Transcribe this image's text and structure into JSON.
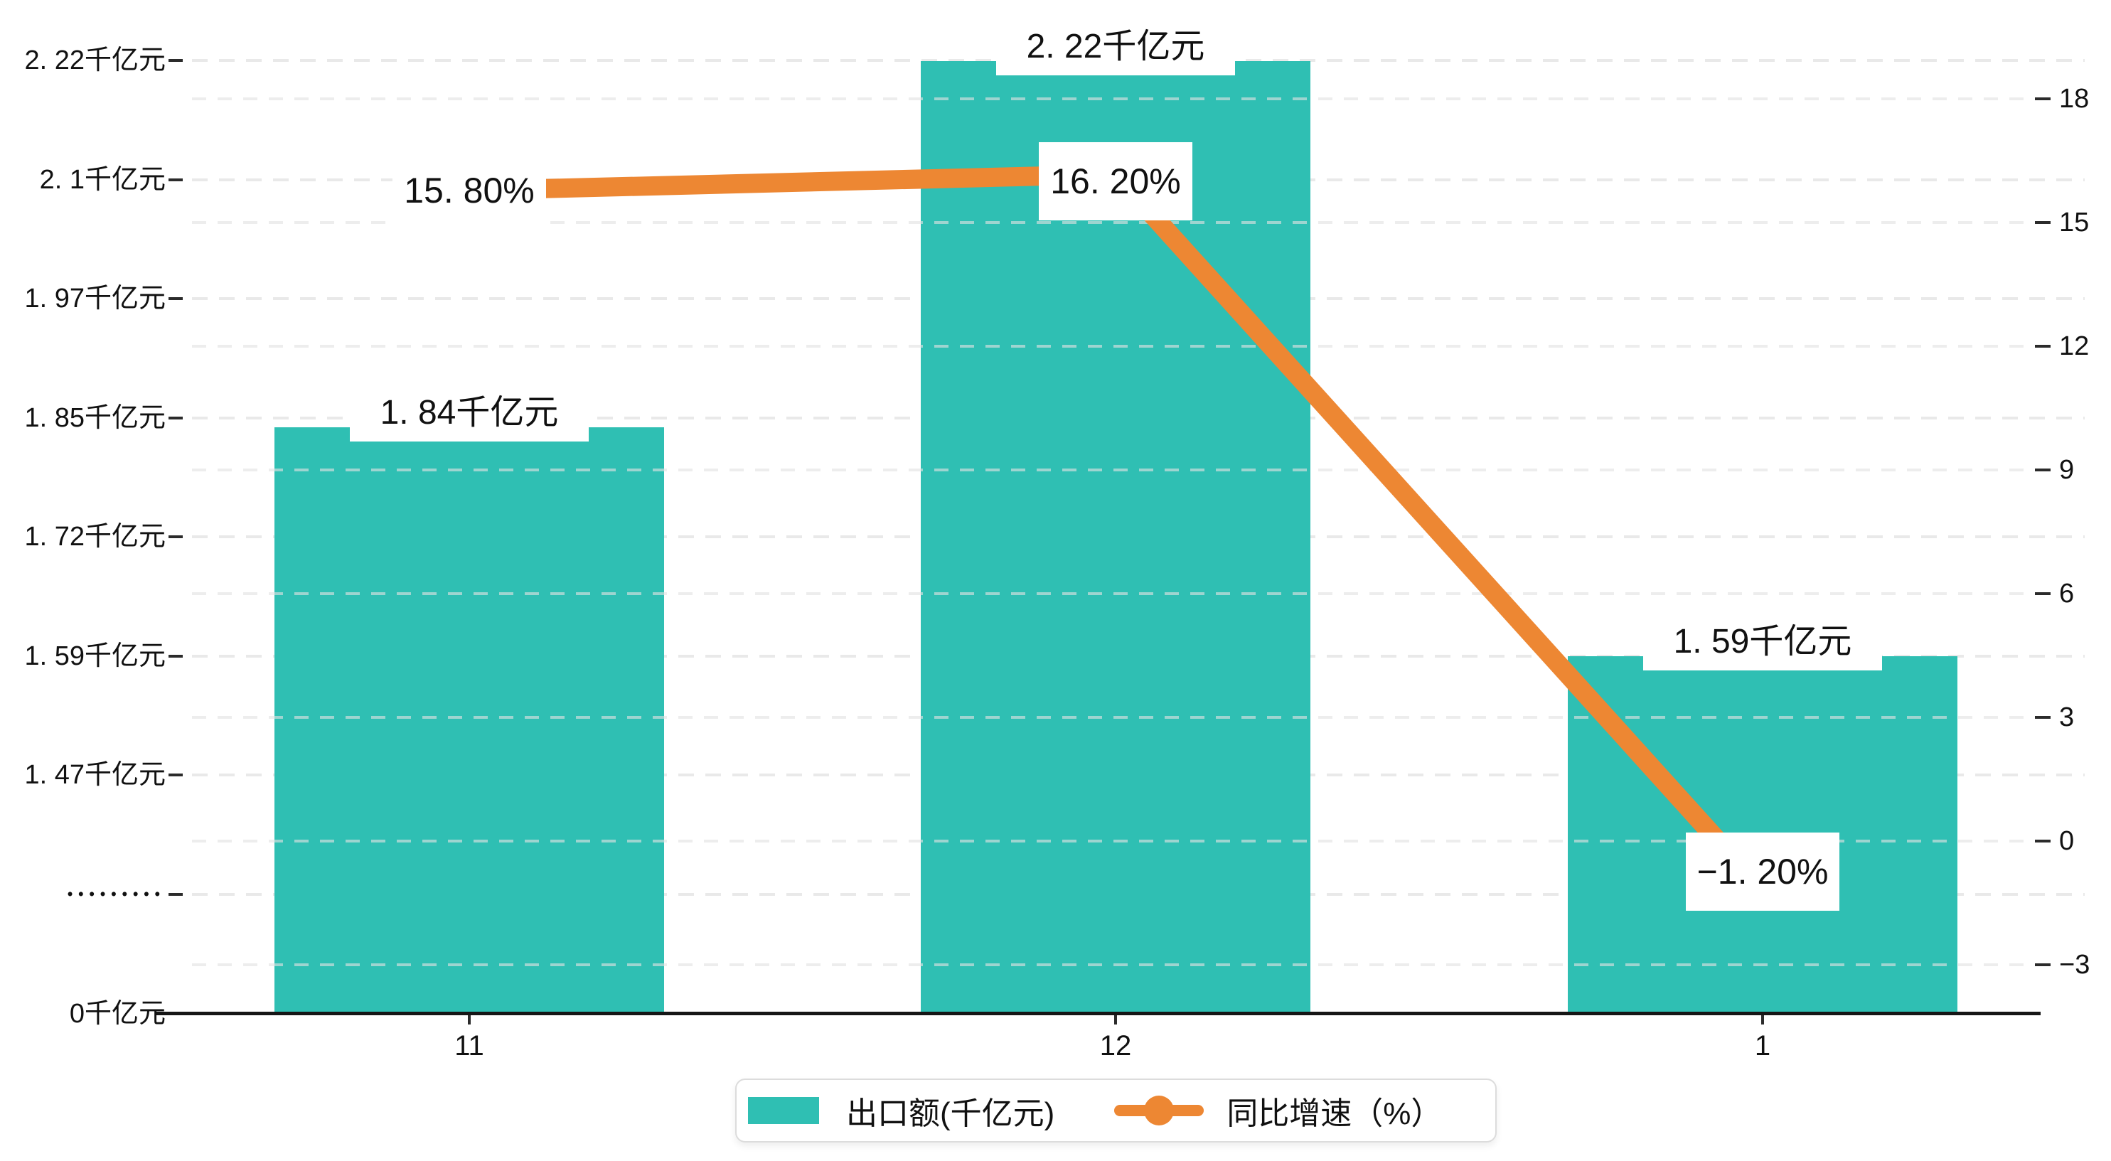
{
  "chart_data": {
    "type": "bar+line",
    "categories": [
      "11",
      "12",
      "1"
    ],
    "series": [
      {
        "name": "出口额(千亿元)",
        "type": "bar",
        "axis": "left",
        "unit": "千亿元",
        "color": "#2FBFB3",
        "values": [
          1.84,
          2.22,
          1.59
        ],
        "labels": [
          "1. 84千亿元",
          "2. 22千亿元",
          "1. 59千亿元"
        ]
      },
      {
        "name": "同比增速（%）",
        "type": "line",
        "axis": "right",
        "unit": "%",
        "color": "#ED8733",
        "values": [
          15.8,
          16.2,
          -1.2
        ],
        "labels": [
          "15. 80%",
          "16. 20%",
          "−1. 20%"
        ]
      }
    ],
    "left_axis": {
      "unit": "千亿元",
      "tick_labels": [
        "2. 22千亿元",
        "2. 1千亿元",
        "1. 97千亿元",
        "1. 85千亿元",
        "1. 72千亿元",
        "1. 59千亿元",
        "1. 47千亿元",
        "•••••••••",
        "0千亿元"
      ],
      "note": "broken axis between 0 and 1.47 (dotted tick)"
    },
    "right_axis": {
      "tick_labels": [
        "18",
        "15",
        "12",
        "9",
        "6",
        "3",
        "0",
        "−3"
      ],
      "range": [
        -3,
        18
      ]
    },
    "grid": true,
    "legend_position": "bottom-center"
  },
  "legend": {
    "items": [
      {
        "label": "出口额(千亿元)",
        "color": "#2FBFB3",
        "marker": "square"
      },
      {
        "label": "同比增速（%）",
        "color": "#ED8733",
        "marker": "line-dot"
      }
    ]
  }
}
